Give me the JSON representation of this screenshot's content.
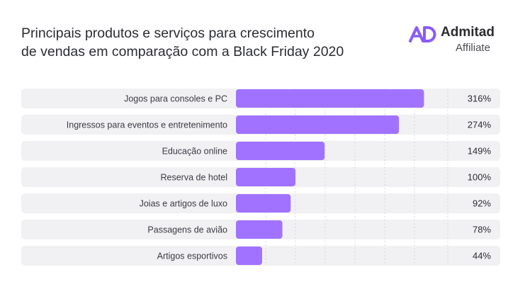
{
  "title": {
    "line1": "Principais produtos e serviços para crescimento",
    "line2": "de vendas em comparação com a Black Friday 2020"
  },
  "brand": {
    "name": "Admitad",
    "sub": "Affiliate",
    "color": "#8a5cf6"
  },
  "colors": {
    "bar": "#a172ff",
    "row_bg": "#f1f1f3",
    "grid": "#d7d7dc"
  },
  "chart_data": {
    "type": "bar",
    "orientation": "horizontal",
    "title": "Principais produtos e serviços para crescimento de vendas em comparação com a Black Friday 2020",
    "categories": [
      "Jogos para consoles e PC",
      "Ingressos para eventos e entretenimento",
      "Educação online",
      "Reserva de hotel",
      "Joias e artigos de luxo",
      "Passagens de avião",
      "Artigos esportivos"
    ],
    "values": [
      316,
      274,
      149,
      100,
      92,
      78,
      44
    ],
    "value_labels": [
      "316%",
      "274%",
      "149%",
      "100%",
      "92%",
      "78%",
      "44%"
    ],
    "unit": "%",
    "xlim": [
      0,
      350
    ],
    "grid": true,
    "legend": "none"
  }
}
